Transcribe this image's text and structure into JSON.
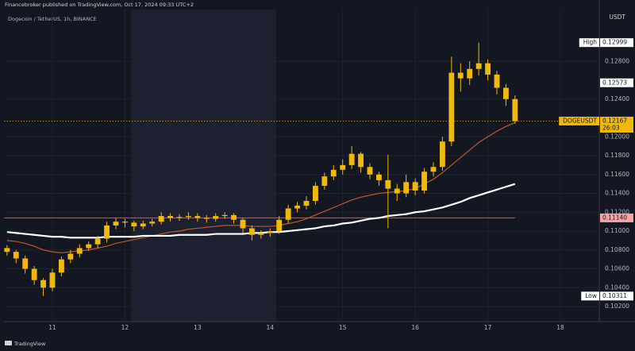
{
  "header": "Financebroker published on TradingView.com, Oct 17, 2024 09:33 UTC+2",
  "footer": "TradingView",
  "chart_data": {
    "type": "candlestick",
    "title": "Dogecoin / TetherUS, 1h, BINANCE",
    "y_axis_label": "USDT",
    "x": [
      10.375,
      10.5,
      10.625,
      10.75,
      10.875,
      11,
      11.125,
      11.25,
      11.375,
      11.5,
      11.625,
      11.75,
      11.875,
      12,
      12.125,
      12.25,
      12.375,
      12.5,
      12.625,
      12.75,
      12.875,
      13,
      13.125,
      13.25,
      13.375,
      13.5,
      13.625,
      13.75,
      13.875,
      14,
      14.125,
      14.25,
      14.375,
      14.5,
      14.625,
      14.75,
      14.875,
      15,
      15.125,
      15.25,
      15.375,
      15.5,
      15.625,
      15.75,
      15.875,
      16,
      16.125,
      16.25,
      16.375,
      16.5,
      16.625,
      16.75,
      16.875,
      17,
      17.125,
      17.25,
      17.375
    ],
    "open": [
      0.1082,
      0.1078,
      0.1071,
      0.106,
      0.1048,
      0.104,
      0.1056,
      0.107,
      0.1076,
      0.1082,
      0.1086,
      0.1092,
      0.1106,
      0.111,
      0.1109,
      0.1105,
      0.1108,
      0.111,
      0.1116,
      0.1114,
      0.1115,
      0.1116,
      0.1114,
      0.1113,
      0.1116,
      0.1117,
      0.1112,
      0.1103,
      0.1096,
      0.1098,
      0.11,
      0.1112,
      0.1124,
      0.1127,
      0.1132,
      0.1148,
      0.1158,
      0.1165,
      0.117,
      0.1182,
      0.1168,
      0.116,
      0.1154,
      0.1145,
      0.114,
      0.1152,
      0.1143,
      0.1163,
      0.1168,
      0.1195,
      0.1268,
      0.1262,
      0.1272,
      0.1278,
      0.1266,
      0.1252,
      0.124
    ],
    "high": [
      0.1085,
      0.108,
      0.1074,
      0.1063,
      0.105,
      0.106,
      0.1073,
      0.108,
      0.1086,
      0.1089,
      0.1095,
      0.111,
      0.1114,
      0.1113,
      0.1111,
      0.1111,
      0.1113,
      0.112,
      0.1119,
      0.1118,
      0.112,
      0.1119,
      0.1117,
      0.1119,
      0.112,
      0.1119,
      0.1114,
      0.1106,
      0.1101,
      0.1103,
      0.1116,
      0.1128,
      0.1131,
      0.1137,
      0.1152,
      0.1162,
      0.117,
      0.1176,
      0.119,
      0.1184,
      0.1172,
      0.1163,
      0.1181,
      0.115,
      0.116,
      0.1156,
      0.1167,
      0.1173,
      0.12,
      0.1285,
      0.1278,
      0.128,
      0.12999,
      0.1282,
      0.127,
      0.1256,
      0.1244
    ],
    "low": [
      0.1074,
      0.1066,
      0.1055,
      0.1043,
      0.10311,
      0.1036,
      0.1052,
      0.1066,
      0.1072,
      0.1079,
      0.1082,
      0.1088,
      0.1102,
      0.1104,
      0.11,
      0.1102,
      0.1105,
      0.1107,
      0.111,
      0.1111,
      0.1112,
      0.111,
      0.1109,
      0.111,
      0.1113,
      0.1108,
      0.1098,
      0.109,
      0.1092,
      0.1094,
      0.1097,
      0.1108,
      0.112,
      0.1123,
      0.1128,
      0.1144,
      0.1154,
      0.116,
      0.1166,
      0.1162,
      0.1155,
      0.1148,
      0.1103,
      0.1132,
      0.1136,
      0.1138,
      0.114,
      0.1158,
      0.1164,
      0.119,
      0.1248,
      0.1255,
      0.1265,
      0.126,
      0.1245,
      0.1233,
      0.1214
    ],
    "close": [
      0.1078,
      0.1071,
      0.106,
      0.1048,
      0.104,
      0.1056,
      0.107,
      0.1076,
      0.1082,
      0.1086,
      0.1092,
      0.1106,
      0.111,
      0.1109,
      0.1105,
      0.1108,
      0.111,
      0.1116,
      0.1114,
      0.1115,
      0.1116,
      0.1114,
      0.1113,
      0.1116,
      0.1117,
      0.1112,
      0.1103,
      0.1096,
      0.1098,
      0.11,
      0.1112,
      0.1124,
      0.1127,
      0.1132,
      0.1148,
      0.1158,
      0.1165,
      0.117,
      0.1182,
      0.1168,
      0.116,
      0.1154,
      0.1145,
      0.114,
      0.1152,
      0.1143,
      0.1163,
      0.1168,
      0.1195,
      0.1268,
      0.1262,
      0.1272,
      0.1278,
      0.1266,
      0.1252,
      0.124,
      0.12167
    ],
    "color": "#f0b90b",
    "lines": [
      {
        "color": "#c0582a",
        "values": [
          0.109,
          0.1089,
          0.1087,
          0.1084,
          0.108,
          0.1078,
          0.1077,
          0.1078,
          0.1079,
          0.108,
          0.1082,
          0.1084,
          0.1087,
          0.1089,
          0.1091,
          0.1093,
          0.1095,
          0.1097,
          0.1099,
          0.11,
          0.1102,
          0.1103,
          0.1104,
          0.1105,
          0.1106,
          0.1106,
          0.1106,
          0.1105,
          0.1105,
          0.1105,
          0.1106,
          0.1108,
          0.111,
          0.1113,
          0.1117,
          0.1121,
          0.1125,
          0.1129,
          0.1133,
          0.1136,
          0.1138,
          0.114,
          0.1141,
          0.1142,
          0.1143,
          0.1145,
          0.115,
          0.1155,
          0.1162,
          0.117,
          0.1178,
          0.1186,
          0.1194,
          0.12,
          0.1206,
          0.1211,
          0.1215
        ]
      },
      {
        "color": "#ffffff",
        "values": [
          0.1099,
          0.1098,
          0.1097,
          0.1096,
          0.1095,
          0.1094,
          0.1094,
          0.1093,
          0.1093,
          0.1093,
          0.1093,
          0.1094,
          0.1094,
          0.1094,
          0.1094,
          0.1095,
          0.1095,
          0.1095,
          0.1095,
          0.1096,
          0.1096,
          0.1096,
          0.1096,
          0.1097,
          0.1097,
          0.1097,
          0.1097,
          0.1098,
          0.1098,
          0.1099,
          0.1099,
          0.11,
          0.1101,
          0.1102,
          0.1103,
          0.1105,
          0.1106,
          0.1108,
          0.1109,
          0.1111,
          0.1113,
          0.1114,
          0.1116,
          0.1117,
          0.1118,
          0.112,
          0.1121,
          0.1123,
          0.1125,
          0.1128,
          0.1131,
          0.1135,
          0.1138,
          0.1141,
          0.1144,
          0.1147,
          0.115
        ]
      }
    ],
    "price_tags": [
      {
        "label": "High",
        "value": 0.12999,
        "color": "#ffffff"
      },
      {
        "value": 0.12573,
        "color": "#ffffff"
      },
      {
        "label": "DOGEUSDT",
        "value": 0.12167,
        "countdown": "26:03",
        "color": "#f0b90b",
        "line": "dotted"
      },
      {
        "value": 0.1114,
        "value_label": "0.11140",
        "color": "#f4a6a6",
        "line": "solid"
      },
      {
        "label": "Low",
        "value": 0.10311,
        "color": "#ffffff"
      }
    ],
    "xlim": [
      10.333,
      18.536
    ],
    "xticks": [
      11,
      12,
      13,
      14,
      15,
      16,
      17,
      18
    ],
    "ylim": [
      0.1004,
      0.1335
    ],
    "yticks": [
      {
        "value": 0.102,
        "label": "0.10200"
      },
      {
        "value": 0.104,
        "label": "0.10400"
      },
      {
        "value": 0.106,
        "label": "0.10600"
      },
      {
        "value": 0.108,
        "label": "0.10800"
      },
      {
        "value": 0.11,
        "label": "0.11000"
      },
      {
        "value": 0.112,
        "label": "0.11200"
      },
      {
        "value": 0.114,
        "label": "0.11400"
      },
      {
        "value": 0.116,
        "label": "0.11600"
      },
      {
        "value": 0.118,
        "label": "0.11800"
      },
      {
        "value": 0.12,
        "label": "0.12000"
      },
      {
        "value": 0.124,
        "label": "0.12400"
      },
      {
        "value": 0.128,
        "label": "0.12800"
      }
    ],
    "grid": true
  }
}
